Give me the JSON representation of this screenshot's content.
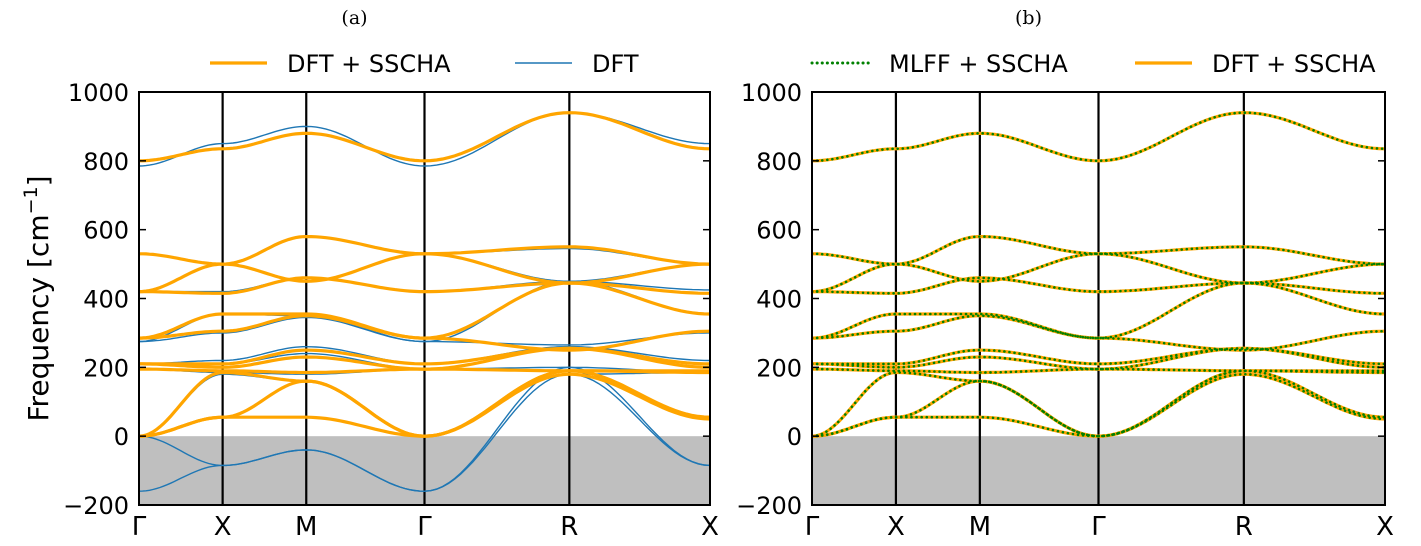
{
  "chart_data": [
    {
      "type": "line",
      "panel_label": "(a)",
      "ylabel": "Frequency [cm$^{-1}$]",
      "ylabel_text": "Frequency [cm",
      "ylabel_sup": "−1",
      "ylabel_close": "]",
      "ylim": [
        -200,
        1000
      ],
      "yticks": [
        -200,
        0,
        200,
        400,
        600,
        800,
        1000
      ],
      "ytick_labels": [
        "−200",
        "0",
        "200",
        "400",
        "600",
        "800",
        "1000"
      ],
      "xlim": [
        0,
        3.414
      ],
      "xticks": [
        0,
        0.5,
        1.0,
        1.707,
        2.573,
        3.414
      ],
      "xtick_labels": [
        "Γ",
        "X",
        "M",
        "Γ",
        "R",
        "X"
      ],
      "shaded_region": [
        -200,
        0
      ],
      "legend_position": "top",
      "series": [
        {
          "name": "DFT + SSCHA",
          "color": "#ffa500",
          "style": "solid",
          "width": 3.2,
          "bands": "sscha"
        },
        {
          "name": "DFT",
          "color": "#1f77b4",
          "style": "solid",
          "width": 1.4,
          "bands": "dft"
        }
      ]
    },
    {
      "type": "line",
      "panel_label": "(b)",
      "ylabel": "",
      "ylim": [
        -200,
        1000
      ],
      "yticks": [
        -200,
        0,
        200,
        400,
        600,
        800,
        1000
      ],
      "ytick_labels": [
        "−200",
        "0",
        "200",
        "400",
        "600",
        "800",
        "1000"
      ],
      "xlim": [
        0,
        3.414
      ],
      "xticks": [
        0,
        0.5,
        1.0,
        1.707,
        2.573,
        3.414
      ],
      "xtick_labels": [
        "Γ",
        "X",
        "M",
        "Γ",
        "R",
        "X"
      ],
      "shaded_region": [
        -200,
        0
      ],
      "legend_position": "top",
      "series": [
        {
          "name": "MLFF + SSCHA",
          "color": "#008000",
          "style": "dotted",
          "width": 2.6,
          "bands": "sscha",
          "draw_order": 2
        },
        {
          "name": "DFT + SSCHA",
          "color": "#ffa500",
          "style": "solid",
          "width": 3.2,
          "bands": "sscha",
          "draw_order": 1
        }
      ]
    }
  ],
  "band_values": {
    "segments": [
      "Γ-X",
      "X-M",
      "M-Γ",
      "Γ-R",
      "R-X"
    ],
    "sscha": [
      [
        800,
        835,
        880,
        800,
        940,
        835
      ],
      [
        530,
        500,
        580,
        530,
        550,
        500
      ],
      [
        420,
        415,
        460,
        420,
        445,
        415
      ],
      [
        420,
        500,
        450,
        530,
        445,
        500
      ],
      [
        285,
        355,
        355,
        285,
        445,
        355
      ],
      [
        285,
        305,
        350,
        285,
        250,
        305
      ],
      [
        210,
        210,
        250,
        210,
        255,
        210
      ],
      [
        210,
        200,
        230,
        195,
        255,
        200
      ],
      [
        195,
        190,
        185,
        195,
        190,
        190
      ],
      [
        0,
        185,
        160,
        0,
        190,
        185
      ],
      [
        0,
        55,
        160,
        0,
        180,
        50
      ],
      [
        0,
        55,
        55,
        0,
        190,
        55
      ]
    ],
    "dft": [
      [
        785,
        850,
        900,
        785,
        940,
        850
      ],
      [
        530,
        500,
        580,
        530,
        545,
        500
      ],
      [
        420,
        420,
        460,
        420,
        450,
        425
      ],
      [
        420,
        500,
        450,
        530,
        450,
        500
      ],
      [
        275,
        355,
        350,
        275,
        450,
        355
      ],
      [
        275,
        300,
        345,
        275,
        265,
        300
      ],
      [
        210,
        220,
        260,
        210,
        260,
        220
      ],
      [
        210,
        210,
        240,
        195,
        260,
        210
      ],
      [
        195,
        185,
        180,
        195,
        200,
        185
      ],
      [
        0,
        180,
        160,
        0,
        180,
        185
      ],
      [
        0,
        -85,
        -40,
        -160,
        180,
        -85
      ],
      [
        -160,
        -85,
        -40,
        -160,
        200,
        -85
      ]
    ]
  }
}
